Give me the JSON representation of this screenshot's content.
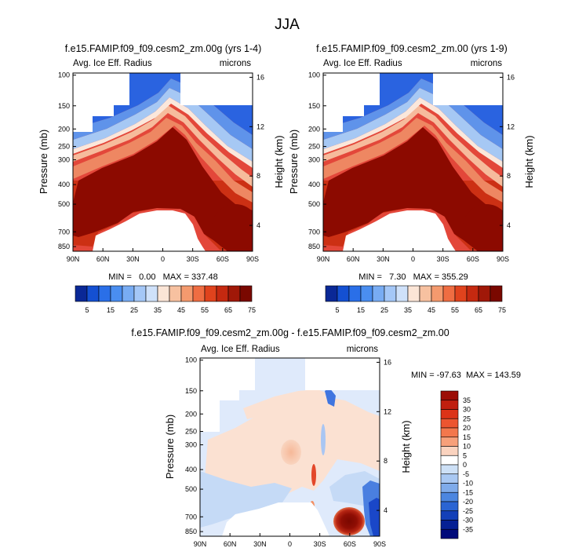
{
  "figure": {
    "title": "JJA"
  },
  "chart_data": [
    {
      "type": "heatmap",
      "title": "f.e15.FAMIP.f09_f09.cesm2_zm.00g (yrs 1-4)",
      "subtitle_left": "Avg. Ice Eff. Radius",
      "subtitle_right": "microns",
      "xlabel": "",
      "ylabel": "Pressure (mb)",
      "ylabel_right": "Height (km)",
      "x_ticks": [
        "90N",
        "60N",
        "30N",
        "0",
        "30S",
        "60S",
        "90S"
      ],
      "y_ticks": [
        "100",
        "150",
        "200",
        "250",
        "300",
        "400",
        "500",
        "700",
        "850"
      ],
      "y2_ticks": [
        "16",
        "12",
        "8",
        "4"
      ],
      "stats": {
        "min": "0.00",
        "max": "337.48"
      },
      "stats_text": "MIN =   0.00   MAX = 337.48",
      "colorbar_labels": [
        "5",
        "15",
        "25",
        "35",
        "45",
        "55",
        "65",
        "75"
      ],
      "colorbar_colors": [
        "#0a2896",
        "#1450d2",
        "#2a6fe8",
        "#4a8ef0",
        "#78acf3",
        "#a4c7f7",
        "#cfe1fa",
        "#fbe5d6",
        "#f7c1a0",
        "#f49a6e",
        "#ef6d42",
        "#e0431d",
        "#c52910",
        "#a01808",
        "#7a0800"
      ]
    },
    {
      "type": "heatmap",
      "title": "f.e15.FAMIP.f09_f09.cesm2_zm.00 (yrs 1-9)",
      "subtitle_left": "Avg. Ice Eff. Radius",
      "subtitle_right": "microns",
      "xlabel": "",
      "ylabel": "Pressure (mb)",
      "ylabel_right": "Height (km)",
      "x_ticks": [
        "90N",
        "60N",
        "30N",
        "0",
        "30S",
        "60S",
        "90S"
      ],
      "y_ticks": [
        "100",
        "150",
        "200",
        "250",
        "300",
        "400",
        "500",
        "700",
        "850"
      ],
      "y2_ticks": [
        "16",
        "12",
        "8",
        "4"
      ],
      "stats": {
        "min": "7.30",
        "max": "355.29"
      },
      "stats_text": "MIN =   7.30   MAX = 355.29",
      "colorbar_labels": [
        "5",
        "15",
        "25",
        "35",
        "45",
        "55",
        "65",
        "75"
      ],
      "colorbar_colors": [
        "#0a2896",
        "#1450d2",
        "#2a6fe8",
        "#4a8ef0",
        "#78acf3",
        "#a4c7f7",
        "#cfe1fa",
        "#fbe5d6",
        "#f7c1a0",
        "#f49a6e",
        "#ef6d42",
        "#e0431d",
        "#c52910",
        "#a01808",
        "#7a0800"
      ]
    },
    {
      "type": "heatmap",
      "title": "f.e15.FAMIP.f09_f09.cesm2_zm.00g - f.e15.FAMIP.f09_f09.cesm2_zm.00",
      "subtitle_left": "Avg. Ice Eff. Radius",
      "subtitle_right": "microns",
      "xlabel": "",
      "ylabel": "Pressure (mb)",
      "ylabel_right": "Height (km)",
      "x_ticks": [
        "90N",
        "60N",
        "30N",
        "0",
        "30S",
        "60S",
        "90S"
      ],
      "y_ticks": [
        "100",
        "150",
        "200",
        "250",
        "300",
        "400",
        "500",
        "700",
        "850"
      ],
      "y2_ticks": [
        "16",
        "12",
        "8",
        "4"
      ],
      "stats": {
        "min": "-97.63",
        "max": "143.59"
      },
      "stats_text": "MIN = -97.63  MAX = 143.59",
      "colorbar_labels": [
        "35",
        "30",
        "25",
        "20",
        "15",
        "10",
        "5",
        "0",
        "-5",
        "-10",
        "-15",
        "-20",
        "-25",
        "-30",
        "-35"
      ],
      "colorbar_colors": [
        "#9c0d06",
        "#c01f0f",
        "#dc3318",
        "#ec5530",
        "#f3774c",
        "#f7a07a",
        "#fad3bf",
        "#ffffff",
        "#cde0f6",
        "#a9c8f2",
        "#7fabea",
        "#4c86e0",
        "#2a64d3",
        "#1340b8",
        "#062094",
        "#000a7a"
      ]
    }
  ]
}
